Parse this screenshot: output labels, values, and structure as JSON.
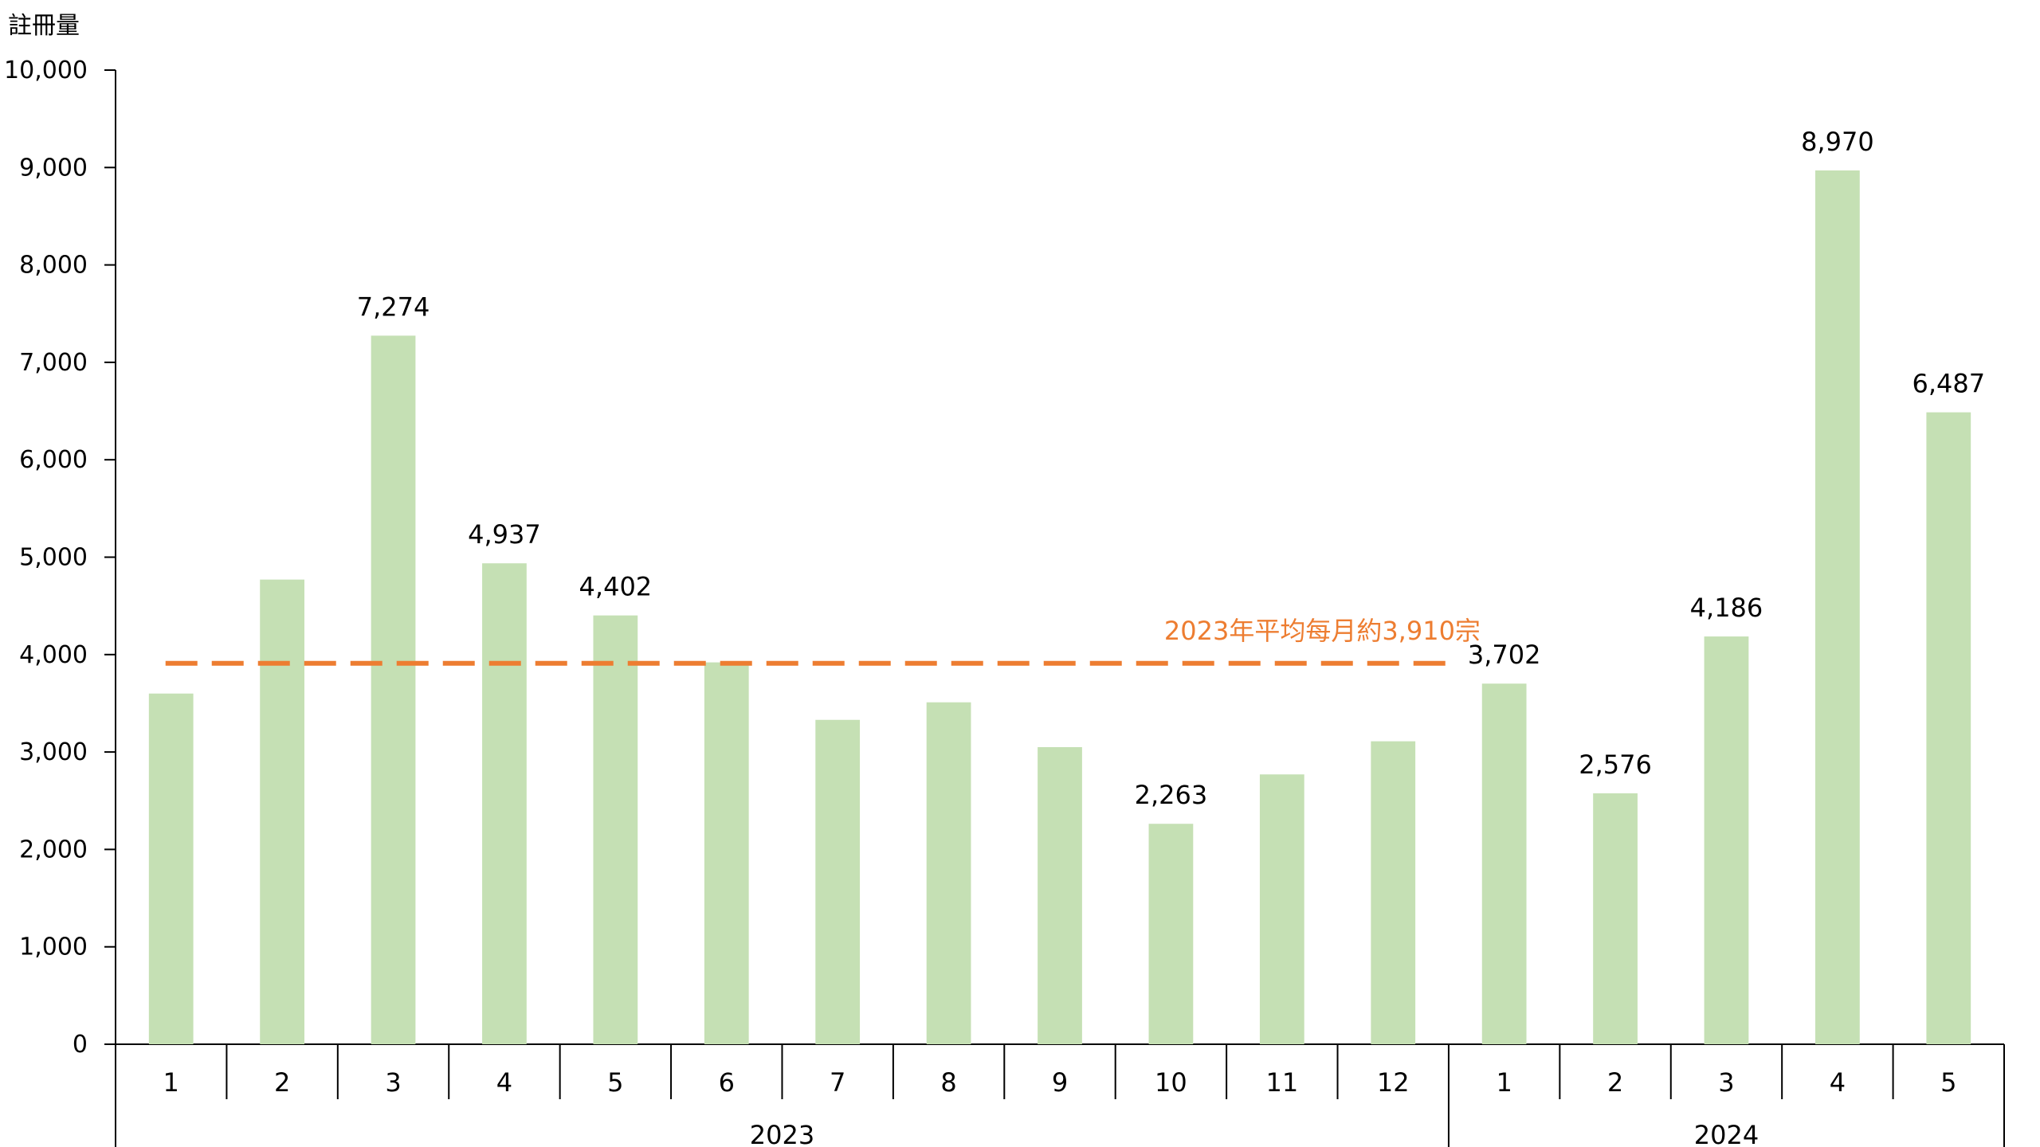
{
  "chart_data": {
    "type": "bar",
    "ylabel": "註冊量",
    "ylim": [
      0,
      10000
    ],
    "yticks": [
      0,
      1000,
      2000,
      3000,
      4000,
      5000,
      6000,
      7000,
      8000,
      9000,
      10000
    ],
    "ytick_labels": [
      "0",
      "1,000",
      "2,000",
      "3,000",
      "4,000",
      "5,000",
      "6,000",
      "7,000",
      "8,000",
      "9,000",
      "10,000"
    ],
    "groups": [
      {
        "label": "2023",
        "categories": [
          "1",
          "2",
          "3",
          "4",
          "5",
          "6",
          "7",
          "8",
          "9",
          "10",
          "11",
          "12"
        ]
      },
      {
        "label": "2024",
        "categories": [
          "1",
          "2",
          "3",
          "4",
          "5"
        ]
      }
    ],
    "series": [
      {
        "values": [
          3600,
          4770,
          7274,
          4937,
          4402,
          3920,
          3330,
          3510,
          3050,
          2263,
          2770,
          3110,
          3702,
          2576,
          4186,
          8970,
          6487
        ],
        "data_labels": [
          "",
          "",
          "7,274",
          "4,937",
          "4,402",
          "",
          "",
          "",
          "",
          "2,263",
          "",
          "",
          "3,702",
          "2,576",
          "4,186",
          "8,970",
          "6,487"
        ],
        "color": "#c5e0b4"
      }
    ],
    "average_line": {
      "value": 3910,
      "label": "2023年平均每月約3,910宗",
      "color": "#ed7d31",
      "span": "2023"
    },
    "grid": false,
    "legend": "none"
  }
}
